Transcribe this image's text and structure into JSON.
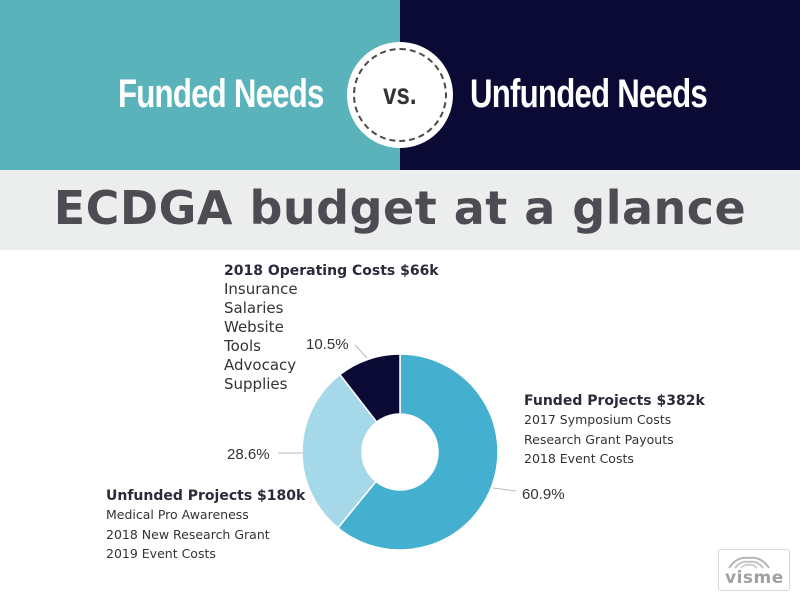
{
  "header": {
    "left_title": "Funded Needs",
    "vs_label": "vs.",
    "right_title": "Unfunded Needs",
    "colors": {
      "left": "#5ab3bb",
      "right": "#0b0a35"
    }
  },
  "band_title": "ECDGA budget at a glance",
  "chart_data": {
    "type": "pie",
    "donut": true,
    "slices": [
      {
        "name": "Funded Projects",
        "value": 60.9,
        "label": "60.9%",
        "color": "#45afd0"
      },
      {
        "name": "Unfunded Projects",
        "value": 28.6,
        "label": "28.6%",
        "color": "#a5d9ea"
      },
      {
        "name": "2018 Operating Costs",
        "value": 10.5,
        "label": "10.5%",
        "color": "#0b0a35"
      }
    ]
  },
  "annotations": {
    "operating": {
      "title": "2018 Operating Costs $66k",
      "items": [
        "Insurance",
        "Salaries",
        "Website",
        "Tools",
        "Advocacy",
        "Supplies"
      ]
    },
    "funded": {
      "title": "Funded Projects $382k",
      "items": [
        "2017 Symposium Costs",
        "Research Grant Payouts",
        "2018 Event Costs"
      ]
    },
    "unfunded": {
      "title": "Unfunded Projects $180k",
      "items": [
        "Medical Pro Awareness",
        "2018 New Research Grant",
        "2019 Event Costs"
      ]
    }
  },
  "watermark": {
    "text": "visme"
  }
}
